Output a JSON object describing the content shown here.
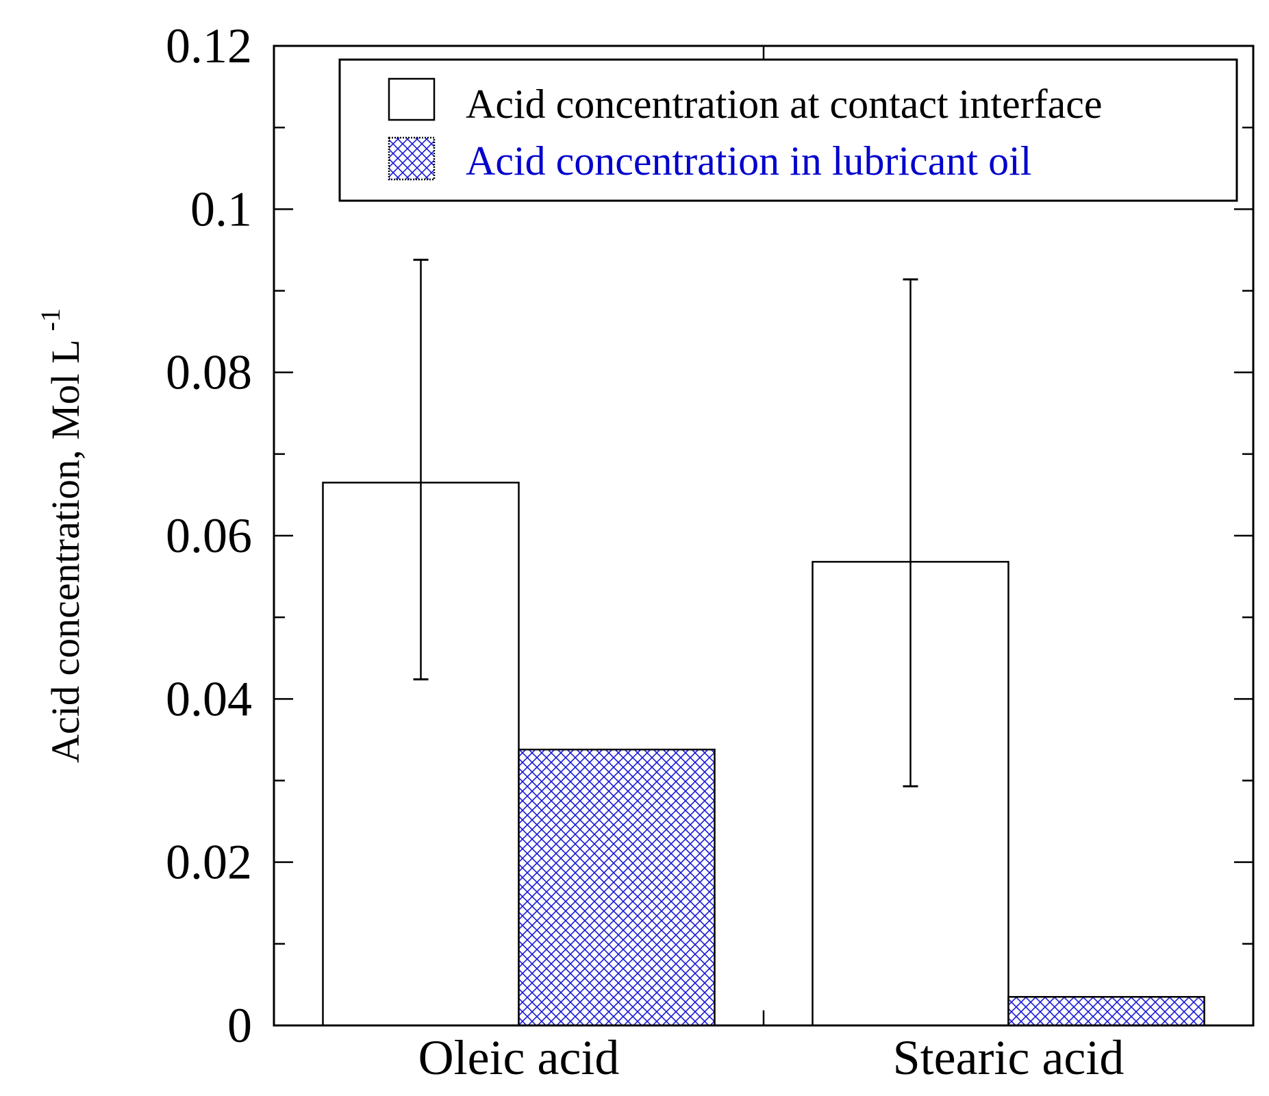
{
  "chart_data": {
    "type": "bar",
    "categories": [
      "Oleic acid",
      "Stearic acid"
    ],
    "series": [
      {
        "name": "Acid concentration at contact interface",
        "values": [
          0.0665,
          0.0568
        ],
        "error_low": [
          0.0424,
          0.0293
        ],
        "error_high": [
          0.0938,
          0.0914
        ],
        "fill": "#ffffff",
        "text_color": "#000000"
      },
      {
        "name": "Acid concentration in lubricant oil",
        "values": [
          0.0338,
          0.0035
        ],
        "fill": "hatch",
        "hatch_color": "#1a1ad6",
        "text_color": "#0000cc"
      }
    ],
    "ylabel": "Acid concentration, Mol L",
    "ylabel_superscript": "-1",
    "ylim": [
      0,
      0.12
    ],
    "y_ticks": [
      "0",
      "0.02",
      "0.04",
      "0.06",
      "0.08",
      "0.1",
      "0.12"
    ],
    "legend_position": "top-right",
    "grid": false
  }
}
